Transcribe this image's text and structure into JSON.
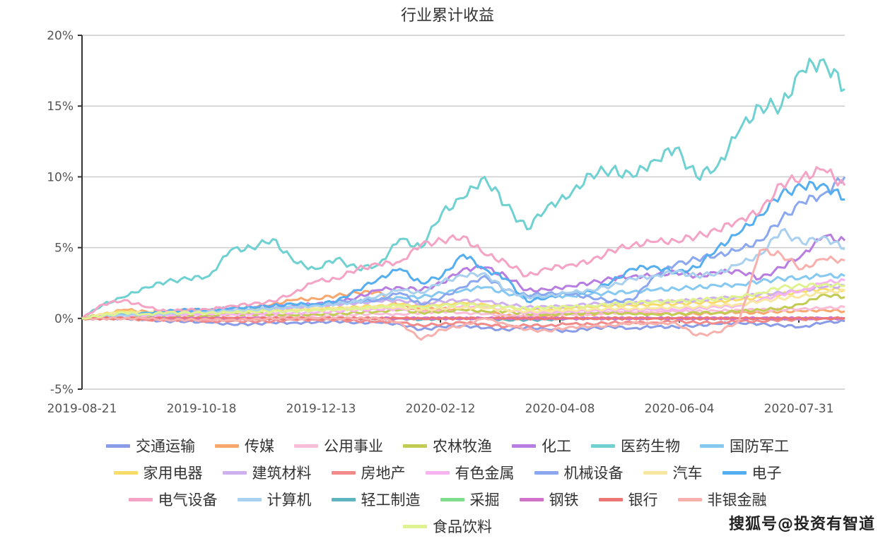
{
  "chart_data": {
    "type": "line",
    "title": "行业累计收益",
    "xlabel": "",
    "ylabel": "",
    "ylim": [
      -5,
      20
    ],
    "yticks": [
      "-5%",
      "0%",
      "5%",
      "10%",
      "15%",
      "20%"
    ],
    "ytick_values": [
      -5,
      0,
      5,
      10,
      15,
      20
    ],
    "xtick_labels": [
      "2019-08-21",
      "2019-10-18",
      "2019-12-13",
      "2020-02-12",
      "2020-04-08",
      "2020-06-04",
      "2020-07-31"
    ],
    "grid": "horizontal",
    "legend_position": "bottom",
    "x_points": 37,
    "series": [
      {
        "name": "交通运输",
        "color": "#8a9be8",
        "values": [
          0,
          0,
          0,
          -0.1,
          -0.2,
          -0.2,
          -0.3,
          -0.4,
          -0.4,
          -0.3,
          -0.3,
          -0.3,
          -0.2,
          -0.3,
          -0.3,
          -0.4,
          -0.8,
          -0.6,
          -0.5,
          -0.7,
          -0.8,
          -0.6,
          -0.8,
          -0.9,
          -0.7,
          -0.6,
          -0.7,
          -0.6,
          -0.6,
          -0.5,
          -0.4,
          -0.3,
          -0.4,
          -0.5,
          -0.6,
          -0.3,
          -0.2
        ]
      },
      {
        "name": "传媒",
        "color": "#f9a66c",
        "values": [
          0,
          0.3,
          0.6,
          0.5,
          0.5,
          0.6,
          0.6,
          0.7,
          0.8,
          1.0,
          1.3,
          1.4,
          1.6,
          1.8,
          1.9,
          0.9,
          0.6,
          0.7,
          0.6,
          0.5,
          0.2,
          0.1,
          0.2,
          0.3,
          0.3,
          0.4,
          0.4,
          0.4,
          0.3,
          0.3,
          0.4,
          0.4,
          0.4,
          0.5,
          0.5,
          0.6,
          0.5
        ]
      },
      {
        "name": "公用事业",
        "color": "#f9bdd7",
        "values": [
          0,
          0.2,
          0.2,
          0.1,
          0.1,
          0.1,
          0.1,
          0.1,
          0.1,
          0.2,
          0.2,
          0.2,
          0.2,
          0.3,
          0.3,
          0.3,
          0.4,
          0.5,
          0.4,
          0.3,
          0.2,
          0.2,
          0.3,
          0.3,
          0.3,
          0.4,
          0.4,
          0.4,
          0.5,
          0.5,
          0.5,
          0.6,
          0.6,
          0.6,
          0.7,
          0.7,
          0.8
        ]
      },
      {
        "name": "农林牧渔",
        "color": "#c2cc52",
        "values": [
          0,
          0.1,
          0.2,
          0.2,
          0.2,
          0.2,
          0.2,
          0.3,
          0.3,
          0.3,
          0.2,
          0.3,
          0.3,
          0.4,
          0.5,
          0.6,
          0.4,
          0.5,
          0.6,
          0.5,
          0.5,
          0.3,
          0.3,
          0.3,
          0.4,
          0.4,
          0.3,
          0.3,
          0.3,
          0.4,
          0.4,
          0.5,
          0.6,
          0.7,
          1.0,
          1.7,
          1.5
        ]
      },
      {
        "name": "化工",
        "color": "#b87de0",
        "values": [
          0,
          0.1,
          0.3,
          0.3,
          0.4,
          0.5,
          0.5,
          0.6,
          0.7,
          0.8,
          0.9,
          1.0,
          1.1,
          1.5,
          2.0,
          2.2,
          2.0,
          2.5,
          3.5,
          3.6,
          3.0,
          2.0,
          2.0,
          2.3,
          2.5,
          2.8,
          3.0,
          3.0,
          3.3,
          3.0,
          3.2,
          3.4,
          2.8,
          3.6,
          4.5,
          5.8,
          5.5
        ]
      },
      {
        "name": "医药生物",
        "color": "#6fd1d1",
        "values": [
          0,
          1.0,
          1.5,
          2.2,
          2.6,
          2.8,
          3.0,
          4.8,
          5.0,
          5.6,
          4.0,
          3.5,
          4.2,
          3.5,
          3.8,
          5.6,
          5.0,
          7.5,
          8.5,
          10.0,
          8.0,
          6.3,
          8.0,
          8.6,
          10.2,
          10.5,
          10.0,
          11.2,
          12.0,
          10.0,
          10.8,
          13.2,
          15.0,
          15.0,
          17.5,
          18.3,
          16.2
        ]
      },
      {
        "name": "国防军工",
        "color": "#85c9f2",
        "values": [
          0,
          0.1,
          0.3,
          0.3,
          0.4,
          0.5,
          0.5,
          0.6,
          0.7,
          0.7,
          0.8,
          0.9,
          1.0,
          1.2,
          1.3,
          1.5,
          1.5,
          1.8,
          2.0,
          2.2,
          1.8,
          1.5,
          1.6,
          1.6,
          1.7,
          1.8,
          1.9,
          2.0,
          2.1,
          2.2,
          2.3,
          2.4,
          2.6,
          2.8,
          2.9,
          3.0,
          3.0
        ]
      },
      {
        "name": "家用电器",
        "color": "#f7dc6a",
        "values": [
          0,
          0.3,
          0.5,
          0.4,
          0.4,
          0.4,
          0.4,
          0.5,
          0.5,
          0.6,
          0.6,
          0.7,
          0.7,
          0.8,
          0.9,
          1.0,
          0.9,
          1.0,
          1.1,
          1.0,
          0.8,
          0.6,
          0.6,
          0.7,
          0.8,
          0.9,
          0.9,
          1.0,
          1.0,
          1.1,
          1.2,
          1.3,
          1.5,
          1.7,
          1.9,
          2.1,
          2.0
        ]
      },
      {
        "name": "建筑材料",
        "color": "#cfb0ee",
        "values": [
          0,
          0.1,
          0.2,
          0.3,
          0.3,
          0.4,
          0.5,
          0.6,
          0.6,
          0.7,
          0.8,
          0.9,
          1.0,
          1.1,
          1.2,
          1.3,
          1.0,
          1.2,
          1.3,
          1.2,
          1.0,
          0.8,
          0.8,
          0.9,
          1.0,
          1.1,
          1.1,
          1.2,
          1.2,
          1.3,
          1.4,
          1.5,
          1.7,
          1.8,
          2.0,
          2.2,
          2.3
        ]
      },
      {
        "name": "房地产",
        "color": "#f38a8a",
        "values": [
          0,
          0,
          0,
          -0.1,
          -0.1,
          -0.1,
          -0.2,
          -0.2,
          -0.2,
          -0.2,
          -0.1,
          -0.1,
          -0.1,
          -0.2,
          -0.2,
          -0.3,
          -0.5,
          -0.4,
          -0.3,
          -0.4,
          -0.6,
          -0.5,
          -0.5,
          -0.4,
          -0.4,
          -0.3,
          -0.3,
          -0.3,
          -0.2,
          -0.3,
          -0.3,
          -0.2,
          -0.2,
          -0.1,
          -0.1,
          0,
          0
        ]
      },
      {
        "name": "有色金属",
        "color": "#f6b3f0",
        "values": [
          0,
          0.2,
          0.3,
          0.2,
          0.2,
          0.3,
          0.3,
          0.3,
          0.3,
          0.4,
          0.4,
          0.4,
          0.5,
          0.6,
          0.6,
          0.7,
          0.6,
          0.7,
          0.9,
          0.8,
          0.6,
          0.4,
          0.4,
          0.5,
          0.5,
          0.6,
          0.6,
          0.6,
          0.6,
          0.7,
          0.8,
          0.9,
          1.3,
          1.7,
          2.0,
          2.5,
          2.7
        ]
      },
      {
        "name": "机械设备",
        "color": "#8aa7ef",
        "values": [
          0,
          0.2,
          0.3,
          0.3,
          0.4,
          0.5,
          0.6,
          0.7,
          0.8,
          0.9,
          1.0,
          1.0,
          1.2,
          1.2,
          1.3,
          1.8,
          1.0,
          1.5,
          2.2,
          3.0,
          2.0,
          1.6,
          1.8,
          1.7,
          1.5,
          1.2,
          1.3,
          3.0,
          3.8,
          4.2,
          4.5,
          4.8,
          5.5,
          7.0,
          8.2,
          8.8,
          10.0
        ]
      },
      {
        "name": "汽车",
        "color": "#f7e7a0",
        "values": [
          0,
          0.3,
          0.4,
          0.4,
          0.4,
          0.5,
          0.5,
          0.5,
          0.6,
          0.6,
          0.6,
          0.7,
          0.7,
          0.7,
          0.8,
          0.8,
          0.6,
          0.7,
          0.8,
          0.7,
          0.6,
          0.5,
          0.5,
          0.6,
          0.6,
          0.7,
          0.7,
          0.7,
          0.8,
          0.8,
          0.9,
          1.0,
          1.2,
          1.4,
          1.6,
          1.8,
          2.0
        ]
      },
      {
        "name": "电子",
        "color": "#55aef0",
        "values": [
          0,
          0.2,
          0.3,
          0.4,
          0.5,
          0.6,
          0.6,
          0.7,
          0.8,
          0.9,
          1.0,
          1.0,
          1.2,
          2.0,
          2.8,
          3.5,
          2.5,
          3.0,
          4.5,
          3.5,
          2.8,
          1.2,
          1.5,
          1.8,
          1.9,
          2.6,
          3.5,
          3.7,
          3.2,
          3.6,
          5.0,
          6.0,
          7.3,
          8.8,
          9.3,
          9.5,
          8.4
        ]
      },
      {
        "name": "电气设备",
        "color": "#f5a3c4",
        "values": [
          0,
          1.0,
          1.3,
          0.8,
          0.5,
          0.6,
          0.6,
          0.9,
          1.0,
          1.2,
          1.8,
          2.6,
          2.8,
          3.5,
          3.8,
          4.0,
          5.2,
          5.5,
          5.8,
          4.5,
          4.0,
          3.0,
          3.5,
          3.8,
          4.0,
          4.8,
          5.2,
          5.4,
          5.5,
          5.8,
          6.2,
          7.0,
          7.5,
          9.5,
          10.0,
          10.5,
          9.4
        ]
      },
      {
        "name": "计算机",
        "color": "#a9d0ee",
        "values": [
          0,
          0.1,
          0.2,
          0.3,
          0.3,
          0.4,
          0.5,
          0.5,
          0.6,
          0.7,
          0.8,
          0.9,
          1.0,
          1.2,
          1.6,
          2.0,
          1.8,
          2.6,
          3.0,
          3.2,
          2.0,
          1.5,
          1.6,
          1.8,
          2.0,
          2.3,
          2.8,
          3.0,
          3.3,
          3.0,
          3.2,
          3.8,
          4.5,
          6.2,
          5.3,
          5.8,
          4.9
        ]
      },
      {
        "name": "轻工制造",
        "color": "#5db5c0",
        "values": [
          0,
          0,
          0,
          0,
          0,
          -0.1,
          -0.1,
          -0.1,
          -0.1,
          0,
          0,
          0,
          0,
          0,
          0,
          0,
          -0.1,
          0,
          0,
          0,
          -0.1,
          -0.1,
          -0.1,
          0,
          0,
          0,
          0,
          0,
          0,
          0,
          0,
          0,
          0,
          0,
          0,
          0,
          0
        ]
      },
      {
        "name": "采掘",
        "color": "#7ddd8c",
        "values": [
          0,
          0,
          0,
          0,
          0,
          0,
          0,
          0,
          0,
          0,
          0,
          0,
          0,
          0,
          0,
          0,
          0,
          0,
          0,
          0,
          0,
          0,
          0,
          0,
          0,
          0,
          0,
          0,
          0,
          0,
          0,
          0,
          0,
          0,
          0,
          0,
          0
        ]
      },
      {
        "name": "钢铁",
        "color": "#d072c8",
        "values": [
          0,
          0,
          0,
          0,
          0,
          0,
          0,
          0,
          0,
          0,
          0,
          0,
          0,
          0,
          0,
          0,
          0,
          0,
          0,
          0,
          0,
          0,
          0,
          0,
          0,
          0,
          0,
          0,
          0,
          0,
          0,
          0,
          0,
          0,
          0,
          0,
          0
        ]
      },
      {
        "name": "银行",
        "color": "#ee7575",
        "values": [
          0,
          0,
          0,
          0,
          0,
          0,
          0,
          0,
          0,
          0,
          0,
          0,
          0,
          0,
          0,
          0,
          0,
          0,
          0,
          0,
          0,
          0,
          0,
          0,
          0,
          0,
          0,
          0,
          0,
          0,
          0,
          0,
          0,
          0,
          0,
          0,
          0
        ]
      },
      {
        "name": "非银金融",
        "color": "#f8b0ad",
        "values": [
          0,
          0,
          0,
          0,
          -0.1,
          -0.1,
          -0.1,
          -0.1,
          -0.1,
          0,
          0,
          0,
          0,
          0,
          0,
          -0.3,
          -1.5,
          -0.8,
          -0.5,
          0,
          -0.4,
          -0.8,
          -0.9,
          -0.6,
          -0.6,
          -0.5,
          -0.3,
          -0.4,
          -0.3,
          -1.2,
          -1.0,
          -0.2,
          4.8,
          4.5,
          3.5,
          4.2,
          4.1
        ]
      },
      {
        "name": "食品饮料",
        "color": "#def38f",
        "values": [
          0,
          0.2,
          0.4,
          0.3,
          0.4,
          0.4,
          0.4,
          0.4,
          0.5,
          0.5,
          0.5,
          0.6,
          0.6,
          0.7,
          0.8,
          0.9,
          0.8,
          0.9,
          1.0,
          0.9,
          0.8,
          0.7,
          0.8,
          0.8,
          0.9,
          1.0,
          1.1,
          1.2,
          1.2,
          1.3,
          1.4,
          1.5,
          1.8,
          2.2,
          2.3,
          2.4,
          2.3
        ]
      }
    ]
  },
  "watermark": "搜狐号@投资有智道"
}
